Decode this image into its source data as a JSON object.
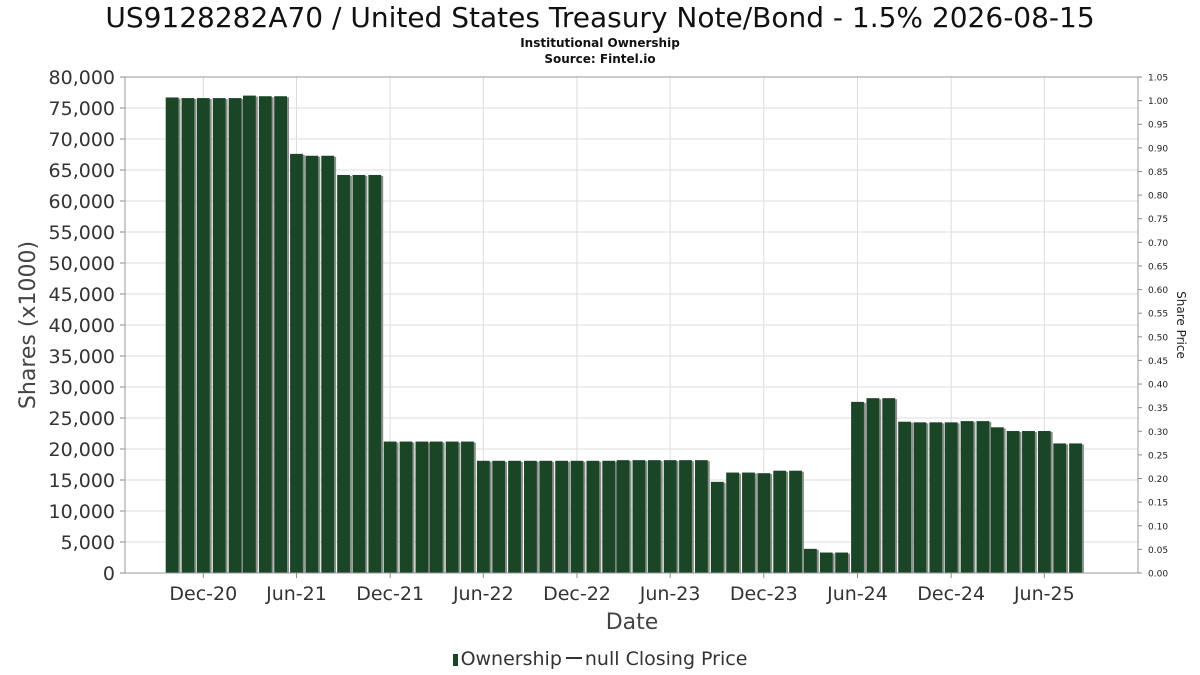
{
  "chart_data": {
    "type": "bar",
    "title": "US9128282A70 / United States Treasury Note/Bond - 1.5% 2026-08-15",
    "subtitle_lines": [
      "Institutional Ownership",
      "Source: Fintel.io"
    ],
    "xlabel": "Date",
    "ylabel": "Shares (x1000)",
    "y2label": "Share Price",
    "ylim": [
      0,
      80000
    ],
    "y2lim": [
      0,
      1.05
    ],
    "yticks": [
      "0",
      "5,000",
      "10,000",
      "15,000",
      "20,000",
      "25,000",
      "30,000",
      "35,000",
      "40,000",
      "45,000",
      "50,000",
      "55,000",
      "60,000",
      "65,000",
      "70,000",
      "75,000",
      "80,000"
    ],
    "y2ticks": [
      "0.00",
      "0.05",
      "0.10",
      "0.15",
      "0.20",
      "0.25",
      "0.30",
      "0.35",
      "0.40",
      "0.45",
      "0.50",
      "0.55",
      "0.60",
      "0.65",
      "0.70",
      "0.75",
      "0.80",
      "0.85",
      "0.90",
      "0.95",
      "1.00",
      "1.05"
    ],
    "xticks": [
      "Dec-20",
      "Jun-21",
      "Dec-21",
      "Jun-22",
      "Dec-22",
      "Jun-23",
      "Dec-23",
      "Jun-24",
      "Dec-24",
      "Jun-25"
    ],
    "xtick_dates": [
      "2020-12-01",
      "2021-06-01",
      "2021-12-01",
      "2022-06-01",
      "2022-12-01",
      "2023-06-01",
      "2023-12-01",
      "2024-06-01",
      "2024-12-01",
      "2025-06-01"
    ],
    "x_range": [
      "2020-07-01",
      "2025-12-01"
    ],
    "grid": true,
    "legend_position": "bottom",
    "series": [
      {
        "name": "Ownership",
        "color": "#1b4527",
        "x": [
          "2020-10-01",
          "2020-11-01",
          "2020-12-01",
          "2021-01-01",
          "2021-02-01",
          "2021-03-01",
          "2021-04-01",
          "2021-05-01",
          "2021-06-01",
          "2021-07-01",
          "2021-08-01",
          "2021-09-01",
          "2021-10-01",
          "2021-11-01",
          "2021-12-01",
          "2022-01-01",
          "2022-02-01",
          "2022-03-01",
          "2022-04-01",
          "2022-05-01",
          "2022-06-01",
          "2022-07-01",
          "2022-08-01",
          "2022-09-01",
          "2022-10-01",
          "2022-11-01",
          "2022-12-01",
          "2023-01-01",
          "2023-02-01",
          "2023-03-01",
          "2023-04-01",
          "2023-05-01",
          "2023-06-01",
          "2023-07-01",
          "2023-08-01",
          "2023-09-01",
          "2023-10-01",
          "2023-11-01",
          "2023-12-01",
          "2024-01-01",
          "2024-02-01",
          "2024-03-01",
          "2024-04-01",
          "2024-05-01",
          "2024-06-01",
          "2024-07-01",
          "2024-08-01",
          "2024-09-01",
          "2024-10-01",
          "2024-11-01",
          "2024-12-01",
          "2025-01-01",
          "2025-02-01",
          "2025-03-01",
          "2025-04-01",
          "2025-05-01",
          "2025-06-01",
          "2025-07-01",
          "2025-08-01"
        ],
        "values": [
          76700,
          76600,
          76600,
          76600,
          76600,
          77000,
          76900,
          76900,
          67600,
          67300,
          67300,
          64200,
          64200,
          64200,
          21200,
          21200,
          21200,
          21200,
          21200,
          21200,
          18100,
          18100,
          18100,
          18100,
          18100,
          18100,
          18100,
          18100,
          18100,
          18200,
          18200,
          18200,
          18200,
          18200,
          18200,
          14700,
          16200,
          16200,
          16100,
          16500,
          16500,
          3900,
          3300,
          3300,
          27600,
          28200,
          28200,
          24400,
          24300,
          24300,
          24300,
          24500,
          24500,
          23500,
          22900,
          22900,
          22900,
          20900,
          20900
        ]
      }
    ],
    "legend_entries": [
      "Ownership",
      "null Closing Price"
    ]
  }
}
